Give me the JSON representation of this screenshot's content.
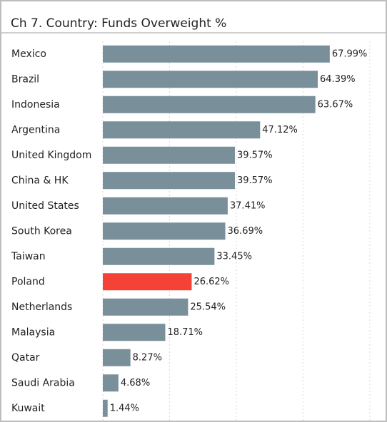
{
  "chart_data": {
    "type": "bar",
    "orientation": "horizontal",
    "title": "Ch 7. Country:  Funds Overweight %",
    "categories": [
      "Mexico",
      "Brazil",
      "Indonesia",
      "Argentina",
      "United Kingdom",
      "China & HK",
      "United States",
      "South Korea",
      "Taiwan",
      "Poland",
      "Netherlands",
      "Malaysia",
      "Qatar",
      "Saudi Arabia",
      "Kuwait"
    ],
    "values": [
      67.99,
      64.39,
      63.67,
      47.12,
      39.57,
      39.57,
      37.41,
      36.69,
      33.45,
      26.62,
      25.54,
      18.71,
      8.27,
      4.68,
      1.44
    ],
    "value_labels": [
      "67.99%",
      "64.39%",
      "63.67%",
      "47.12%",
      "39.57%",
      "39.57%",
      "37.41%",
      "36.69%",
      "33.45%",
      "26.62%",
      "25.54%",
      "18.71%",
      "8.27%",
      "4.68%",
      "1.44%"
    ],
    "colors": [
      "#798f9a",
      "#798f9a",
      "#798f9a",
      "#798f9a",
      "#798f9a",
      "#798f9a",
      "#798f9a",
      "#798f9a",
      "#798f9a",
      "#f44336",
      "#798f9a",
      "#798f9a",
      "#798f9a",
      "#798f9a",
      "#798f9a"
    ],
    "xlim": [
      0,
      80
    ],
    "xticks": [
      0,
      20,
      40,
      60,
      80
    ],
    "grid": true
  }
}
